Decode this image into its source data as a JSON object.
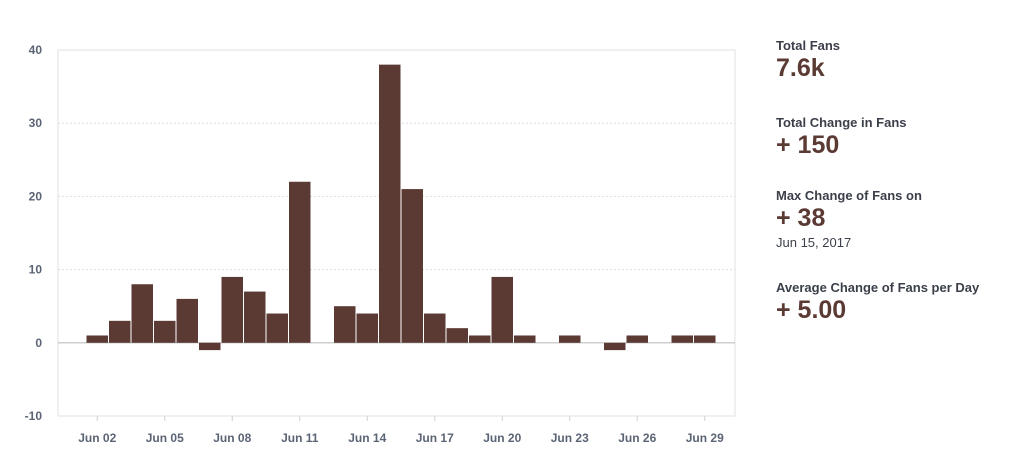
{
  "chart_data": {
    "type": "bar",
    "categories": [
      "Jun 01",
      "Jun 02",
      "Jun 03",
      "Jun 04",
      "Jun 05",
      "Jun 06",
      "Jun 07",
      "Jun 08",
      "Jun 09",
      "Jun 10",
      "Jun 11",
      "Jun 12",
      "Jun 13",
      "Jun 14",
      "Jun 15",
      "Jun 16",
      "Jun 17",
      "Jun 18",
      "Jun 19",
      "Jun 20",
      "Jun 21",
      "Jun 22",
      "Jun 23",
      "Jun 24",
      "Jun 25",
      "Jun 26",
      "Jun 27",
      "Jun 28",
      "Jun 29",
      "Jun 30"
    ],
    "values": [
      0,
      1,
      3,
      8,
      3,
      6,
      -1,
      9,
      7,
      4,
      22,
      0,
      5,
      4,
      38,
      21,
      4,
      2,
      1,
      9,
      1,
      0,
      1,
      0,
      -1,
      1,
      0,
      1,
      1,
      0
    ],
    "tick_labels": [
      "Jun 02",
      "Jun 05",
      "Jun 08",
      "Jun 11",
      "Jun 14",
      "Jun 17",
      "Jun 20",
      "Jun 23",
      "Jun 26",
      "Jun 29"
    ],
    "tick_categories": [
      "Jun 02",
      "Jun 05",
      "Jun 08",
      "Jun 11",
      "Jun 14",
      "Jun 17",
      "Jun 20",
      "Jun 23",
      "Jun 26",
      "Jun 29"
    ],
    "y_ticks": [
      "40",
      "30",
      "20",
      "10",
      "0",
      "-10"
    ],
    "ylim": [
      -10,
      40
    ],
    "grid": true,
    "colors": {
      "bar": "#5b3a34",
      "grid": "#dddddd",
      "axis_text": "#5b6475"
    }
  },
  "stats": [
    {
      "label": "Total Fans",
      "value": "7.6k"
    },
    {
      "label": "Total Change in Fans",
      "value": "+ 150"
    },
    {
      "label": "Max Change of Fans on",
      "value": "+ 38",
      "sub": "Jun 15, 2017"
    },
    {
      "label": "Average Change of Fans per Day",
      "value": "+ 5.00"
    }
  ]
}
